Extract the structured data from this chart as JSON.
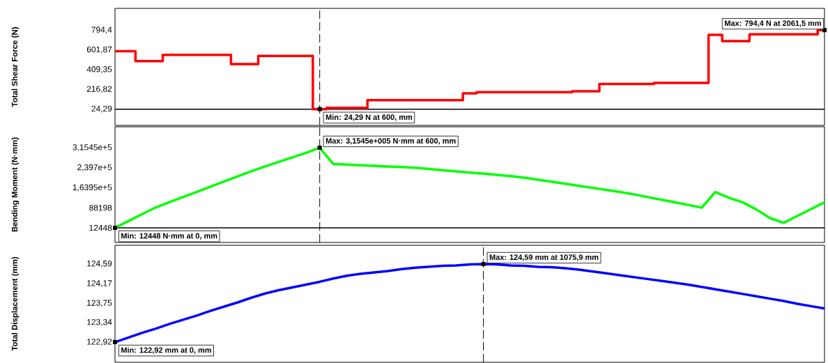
{
  "chart_data": [
    {
      "type": "step",
      "ylabel": "Total Shear Force (N)",
      "tick_labels": "y",
      "ylim": [
        -134,
        1007
      ],
      "yticks": [
        {
          "value": 24.29,
          "label": "24,29"
        },
        {
          "value": 216.82,
          "label": "216,82"
        },
        {
          "value": 409.35,
          "label": "409,35"
        },
        {
          "value": 601.87,
          "label": "601,87"
        },
        {
          "value": 794.4,
          "label": "794,4"
        }
      ],
      "categories": [
        null,
        null,
        null,
        null,
        null,
        null,
        null,
        null,
        null,
        null,
        null,
        null,
        null,
        null,
        null,
        null,
        null,
        null,
        null,
        null,
        null,
        null,
        null,
        null,
        null,
        null,
        null,
        null,
        null,
        null,
        null,
        null,
        null,
        null,
        null,
        null,
        null,
        null,
        null,
        null,
        null,
        null,
        null,
        null,
        null,
        null,
        null,
        null,
        null,
        null,
        null,
        null,
        null
      ],
      "series": [
        {
          "color": "#ff0000",
          "values": [
            590,
            590,
            492,
            492,
            553,
            553,
            553,
            553,
            553,
            463,
            463,
            543,
            543,
            543,
            543,
            24.29,
            38,
            38,
            38,
            112,
            112,
            112,
            112,
            112,
            112,
            112,
            178,
            191,
            191,
            191,
            191,
            191,
            191,
            191,
            199,
            199,
            270,
            270,
            270,
            270,
            281,
            281,
            281,
            281,
            749,
            688,
            688,
            754,
            754,
            754,
            754,
            754,
            794.4
          ]
        }
      ],
      "ref_lines": [
        {
          "axis": "y",
          "value": 24.29,
          "line_style": "solid"
        }
      ],
      "annotations": [
        "Min: 24,29 N at 600, mm",
        "Max: 794,4 N at 2061,5 mm"
      ]
    },
    {
      "type": "line",
      "ylabel": "Bending Moment (N·mm)",
      "tick_labels": "y",
      "ylim": [
        -42900,
        394500
      ],
      "yticks": [
        {
          "value": 12448,
          "label": "12448"
        },
        {
          "value": 88198,
          "label": "88198"
        },
        {
          "value": 163950,
          "label": "1,6395e+5"
        },
        {
          "value": 239700,
          "label": "2,397e+5"
        },
        {
          "value": 315450,
          "label": "3,1545e+5"
        }
      ],
      "categories": [
        null,
        null,
        null,
        null,
        null,
        null,
        null,
        null,
        null,
        null,
        null,
        null,
        null,
        null,
        null,
        null,
        null,
        null,
        null,
        null,
        null,
        null,
        null,
        null,
        null,
        null,
        null,
        null,
        null,
        null,
        null,
        null,
        null,
        null,
        null,
        null,
        null,
        null,
        null,
        null,
        null,
        null,
        null,
        null,
        null,
        null,
        null,
        null,
        null,
        null,
        null,
        null,
        null
      ],
      "series": [
        {
          "color": "#00ff00",
          "values": [
            12448,
            38500,
            64500,
            90100,
            109600,
            129200,
            148700,
            168300,
            187800,
            207300,
            226900,
            244600,
            261700,
            278900,
            296100,
            315450,
            253900,
            251600,
            249200,
            246900,
            244600,
            242300,
            239400,
            234900,
            230400,
            225900,
            221500,
            217000,
            212400,
            208000,
            202200,
            194400,
            186800,
            179000,
            171200,
            163600,
            155800,
            148000,
            139200,
            129100,
            119000,
            109100,
            99000,
            88900,
            148100,
            126100,
            109000,
            81900,
            49300,
            31300,
            57400,
            82800,
            108900
          ]
        }
      ],
      "ref_lines": [
        {
          "axis": "y",
          "value": 12448,
          "line_style": "solid"
        }
      ],
      "annotations": [
        "Min: 12448 N·mm at 0, mm",
        "Max: 3,1545e+005 N·mm at 600, mm"
      ]
    },
    {
      "type": "line",
      "ylabel": "Total Displacement (mm)",
      "tick_labels": "y",
      "ylim": [
        122.49,
        124.99
      ],
      "yticks": [
        {
          "value": 122.92,
          "label": "122,92"
        },
        {
          "value": 123.34,
          "label": "123,34"
        },
        {
          "value": 123.75,
          "label": "123,75"
        },
        {
          "value": 124.17,
          "label": "124,17"
        },
        {
          "value": 124.59,
          "label": "124,59"
        }
      ],
      "categories": [
        null,
        null,
        null,
        null,
        null,
        null,
        null,
        null,
        null,
        null,
        null,
        null,
        null,
        null,
        null,
        null,
        null,
        null,
        null,
        null,
        null,
        null,
        null,
        null,
        null,
        null,
        null,
        null,
        null,
        null,
        null,
        null,
        null,
        null,
        null,
        null,
        null,
        null,
        null,
        null,
        null,
        null,
        null,
        null,
        null,
        null,
        null,
        null,
        null,
        null,
        null,
        null,
        null
      ],
      "series": [
        {
          "color": "#0000ff",
          "values": [
            122.92,
            123.02,
            123.12,
            123.21,
            123.31,
            123.4,
            123.49,
            123.59,
            123.68,
            123.77,
            123.87,
            123.96,
            124.03,
            124.09,
            124.15,
            124.21,
            124.28,
            124.34,
            124.38,
            124.41,
            124.44,
            124.48,
            124.51,
            124.53,
            124.55,
            124.56,
            124.58,
            124.59,
            124.58,
            124.56,
            124.55,
            124.53,
            124.52,
            124.5,
            124.47,
            124.43,
            124.39,
            124.35,
            124.31,
            124.27,
            124.23,
            124.19,
            124.15,
            124.1,
            124.05,
            124,
            123.95,
            123.9,
            123.85,
            123.8,
            123.74,
            123.69,
            123.64
          ]
        }
      ],
      "annotations": [
        "Min: 122,92 mm at 0, mm",
        "Max: 124,59 mm at 1075,9 mm"
      ]
    }
  ]
}
